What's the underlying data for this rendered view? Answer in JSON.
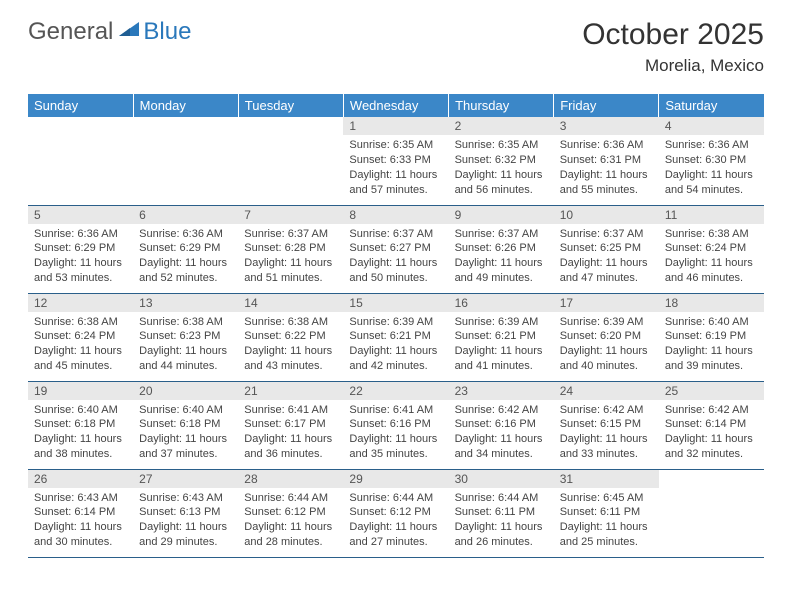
{
  "brand": {
    "part1": "General",
    "part2": "Blue"
  },
  "title": "October 2025",
  "subtitle": "Morelia, Mexico",
  "colors": {
    "header_bg": "#3b87c8",
    "header_text": "#ffffff",
    "daynum_bg": "#e8e8e8",
    "cell_border": "#2a5f8a",
    "brand_blue": "#2a78bb",
    "body_text": "#333333"
  },
  "weekdays": [
    "Sunday",
    "Monday",
    "Tuesday",
    "Wednesday",
    "Thursday",
    "Friday",
    "Saturday"
  ],
  "weeks": [
    [
      {
        "n": "",
        "sr": "",
        "ss": "",
        "dl": ""
      },
      {
        "n": "",
        "sr": "",
        "ss": "",
        "dl": ""
      },
      {
        "n": "",
        "sr": "",
        "ss": "",
        "dl": ""
      },
      {
        "n": "1",
        "sr": "Sunrise: 6:35 AM",
        "ss": "Sunset: 6:33 PM",
        "dl": "Daylight: 11 hours and 57 minutes."
      },
      {
        "n": "2",
        "sr": "Sunrise: 6:35 AM",
        "ss": "Sunset: 6:32 PM",
        "dl": "Daylight: 11 hours and 56 minutes."
      },
      {
        "n": "3",
        "sr": "Sunrise: 6:36 AM",
        "ss": "Sunset: 6:31 PM",
        "dl": "Daylight: 11 hours and 55 minutes."
      },
      {
        "n": "4",
        "sr": "Sunrise: 6:36 AM",
        "ss": "Sunset: 6:30 PM",
        "dl": "Daylight: 11 hours and 54 minutes."
      }
    ],
    [
      {
        "n": "5",
        "sr": "Sunrise: 6:36 AM",
        "ss": "Sunset: 6:29 PM",
        "dl": "Daylight: 11 hours and 53 minutes."
      },
      {
        "n": "6",
        "sr": "Sunrise: 6:36 AM",
        "ss": "Sunset: 6:29 PM",
        "dl": "Daylight: 11 hours and 52 minutes."
      },
      {
        "n": "7",
        "sr": "Sunrise: 6:37 AM",
        "ss": "Sunset: 6:28 PM",
        "dl": "Daylight: 11 hours and 51 minutes."
      },
      {
        "n": "8",
        "sr": "Sunrise: 6:37 AM",
        "ss": "Sunset: 6:27 PM",
        "dl": "Daylight: 11 hours and 50 minutes."
      },
      {
        "n": "9",
        "sr": "Sunrise: 6:37 AM",
        "ss": "Sunset: 6:26 PM",
        "dl": "Daylight: 11 hours and 49 minutes."
      },
      {
        "n": "10",
        "sr": "Sunrise: 6:37 AM",
        "ss": "Sunset: 6:25 PM",
        "dl": "Daylight: 11 hours and 47 minutes."
      },
      {
        "n": "11",
        "sr": "Sunrise: 6:38 AM",
        "ss": "Sunset: 6:24 PM",
        "dl": "Daylight: 11 hours and 46 minutes."
      }
    ],
    [
      {
        "n": "12",
        "sr": "Sunrise: 6:38 AM",
        "ss": "Sunset: 6:24 PM",
        "dl": "Daylight: 11 hours and 45 minutes."
      },
      {
        "n": "13",
        "sr": "Sunrise: 6:38 AM",
        "ss": "Sunset: 6:23 PM",
        "dl": "Daylight: 11 hours and 44 minutes."
      },
      {
        "n": "14",
        "sr": "Sunrise: 6:38 AM",
        "ss": "Sunset: 6:22 PM",
        "dl": "Daylight: 11 hours and 43 minutes."
      },
      {
        "n": "15",
        "sr": "Sunrise: 6:39 AM",
        "ss": "Sunset: 6:21 PM",
        "dl": "Daylight: 11 hours and 42 minutes."
      },
      {
        "n": "16",
        "sr": "Sunrise: 6:39 AM",
        "ss": "Sunset: 6:21 PM",
        "dl": "Daylight: 11 hours and 41 minutes."
      },
      {
        "n": "17",
        "sr": "Sunrise: 6:39 AM",
        "ss": "Sunset: 6:20 PM",
        "dl": "Daylight: 11 hours and 40 minutes."
      },
      {
        "n": "18",
        "sr": "Sunrise: 6:40 AM",
        "ss": "Sunset: 6:19 PM",
        "dl": "Daylight: 11 hours and 39 minutes."
      }
    ],
    [
      {
        "n": "19",
        "sr": "Sunrise: 6:40 AM",
        "ss": "Sunset: 6:18 PM",
        "dl": "Daylight: 11 hours and 38 minutes."
      },
      {
        "n": "20",
        "sr": "Sunrise: 6:40 AM",
        "ss": "Sunset: 6:18 PM",
        "dl": "Daylight: 11 hours and 37 minutes."
      },
      {
        "n": "21",
        "sr": "Sunrise: 6:41 AM",
        "ss": "Sunset: 6:17 PM",
        "dl": "Daylight: 11 hours and 36 minutes."
      },
      {
        "n": "22",
        "sr": "Sunrise: 6:41 AM",
        "ss": "Sunset: 6:16 PM",
        "dl": "Daylight: 11 hours and 35 minutes."
      },
      {
        "n": "23",
        "sr": "Sunrise: 6:42 AM",
        "ss": "Sunset: 6:16 PM",
        "dl": "Daylight: 11 hours and 34 minutes."
      },
      {
        "n": "24",
        "sr": "Sunrise: 6:42 AM",
        "ss": "Sunset: 6:15 PM",
        "dl": "Daylight: 11 hours and 33 minutes."
      },
      {
        "n": "25",
        "sr": "Sunrise: 6:42 AM",
        "ss": "Sunset: 6:14 PM",
        "dl": "Daylight: 11 hours and 32 minutes."
      }
    ],
    [
      {
        "n": "26",
        "sr": "Sunrise: 6:43 AM",
        "ss": "Sunset: 6:14 PM",
        "dl": "Daylight: 11 hours and 30 minutes."
      },
      {
        "n": "27",
        "sr": "Sunrise: 6:43 AM",
        "ss": "Sunset: 6:13 PM",
        "dl": "Daylight: 11 hours and 29 minutes."
      },
      {
        "n": "28",
        "sr": "Sunrise: 6:44 AM",
        "ss": "Sunset: 6:12 PM",
        "dl": "Daylight: 11 hours and 28 minutes."
      },
      {
        "n": "29",
        "sr": "Sunrise: 6:44 AM",
        "ss": "Sunset: 6:12 PM",
        "dl": "Daylight: 11 hours and 27 minutes."
      },
      {
        "n": "30",
        "sr": "Sunrise: 6:44 AM",
        "ss": "Sunset: 6:11 PM",
        "dl": "Daylight: 11 hours and 26 minutes."
      },
      {
        "n": "31",
        "sr": "Sunrise: 6:45 AM",
        "ss": "Sunset: 6:11 PM",
        "dl": "Daylight: 11 hours and 25 minutes."
      },
      {
        "n": "",
        "sr": "",
        "ss": "",
        "dl": ""
      }
    ]
  ]
}
